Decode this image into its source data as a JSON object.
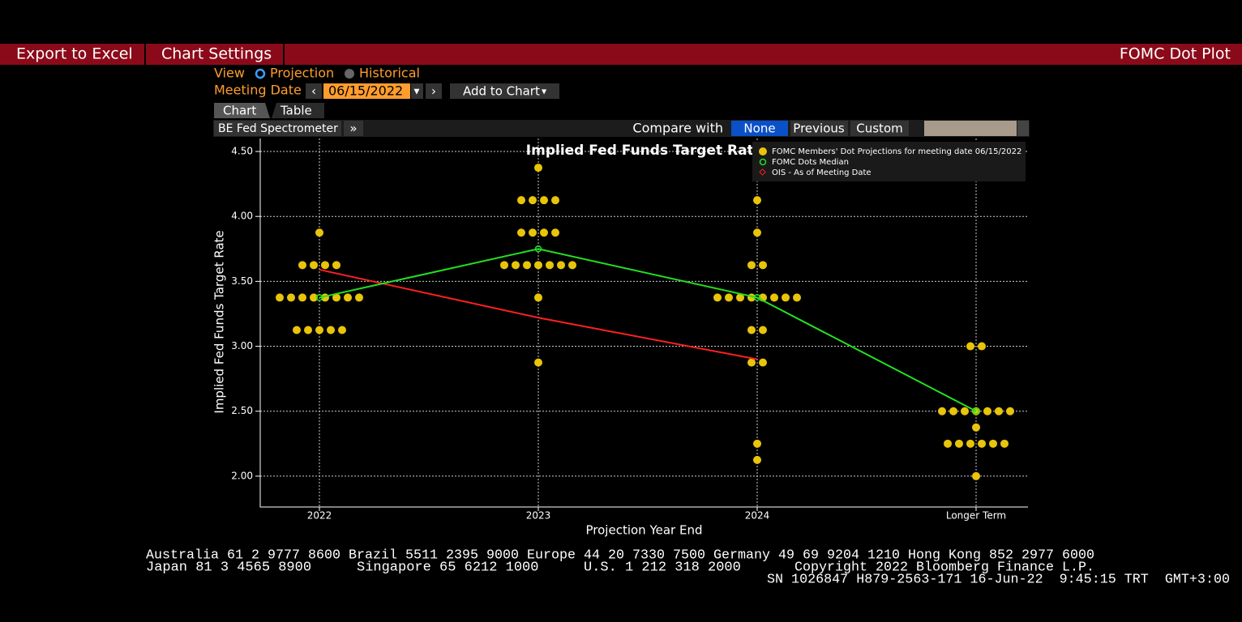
{
  "toolbar": {
    "buttons": [
      "Export to Excel",
      "Chart Settings"
    ],
    "title": "FOMC Dot Plot"
  },
  "controls": {
    "view_label": "View",
    "view_options": [
      "Projection",
      "Historical"
    ],
    "meeting_label": "Meeting Date",
    "meeting_date": "06/15/2022",
    "add_button": "Add to Chart",
    "tabs": [
      "Chart",
      "Table"
    ],
    "source": "BE Fed Spectrometer",
    "compare_label": "Compare with",
    "compare_options": [
      "None",
      "Previous",
      "Custom"
    ]
  },
  "chart_data": {
    "type": "dot-plot",
    "title": "Implied Fed Funds Target Rate",
    "x_label": "Projection Year End",
    "y_label": "Implied Fed Funds Target Rate",
    "categories": [
      "2022",
      "2023",
      "2024",
      "Longer Term"
    ],
    "ylim": [
      1.75,
      4.6
    ],
    "yticks": [
      {
        "value": 2,
        "label": "2.00"
      },
      {
        "value": 2.5,
        "label": "2.50"
      },
      {
        "value": 3,
        "label": "3.00"
      },
      {
        "value": 3.5,
        "label": "3.50"
      },
      {
        "value": 4,
        "label": "4.00"
      },
      {
        "value": 4.5,
        "label": "4.50"
      }
    ],
    "grid": true,
    "series": [
      {
        "name": "FOMC Members' Dot Projections for meeting date 06/15/2022",
        "color": "#e8c40a",
        "values": [
          [
            3.875,
            3.625,
            3.625,
            3.625,
            3.625,
            3.375,
            3.375,
            3.375,
            3.375,
            3.375,
            3.375,
            3.375,
            3.375,
            3.125,
            3.125,
            3.125,
            3.125,
            3.125
          ],
          [
            4.375,
            4.125,
            4.125,
            4.125,
            4.125,
            3.875,
            3.875,
            3.875,
            3.875,
            3.625,
            3.625,
            3.625,
            3.625,
            3.625,
            3.625,
            3.625,
            3.375,
            2.875
          ],
          [
            4.125,
            3.875,
            3.625,
            3.625,
            3.375,
            3.375,
            3.375,
            3.375,
            3.375,
            3.375,
            3.375,
            3.375,
            3.125,
            3.125,
            2.875,
            2.875,
            2.25,
            2.125
          ],
          [
            3.0,
            3.0,
            2.5,
            2.5,
            2.5,
            2.5,
            2.5,
            2.5,
            2.5,
            2.375,
            2.25,
            2.25,
            2.25,
            2.25,
            2.25,
            2.25,
            2.0
          ]
        ]
      },
      {
        "name": "FOMC Dots Median",
        "color": "#22e022",
        "values": [
          3.375,
          3.75,
          3.375,
          2.5
        ]
      },
      {
        "name": "OIS - As of Meeting Date",
        "color": "#ff2020",
        "values": [
          3.59,
          3.22,
          2.9,
          null
        ]
      }
    ]
  },
  "footer": {
    "line1": "Australia 61 2 9777 8600 Brazil 5511 2395 9000 Europe 44 20 7330 7500 Germany 49 69 9204 1210 Hong Kong 852 2977 6000",
    "line2": [
      "Japan 81 3 4565 8900",
      "Singapore 65 6212 1000",
      "U.S. 1 212 318 2000",
      "Copyright 2022 Bloomberg Finance L.P."
    ],
    "line3": "SN 1026847 H879-2563-171 16-Jun-22  9:45:15 TRT  GMT+3:00"
  }
}
